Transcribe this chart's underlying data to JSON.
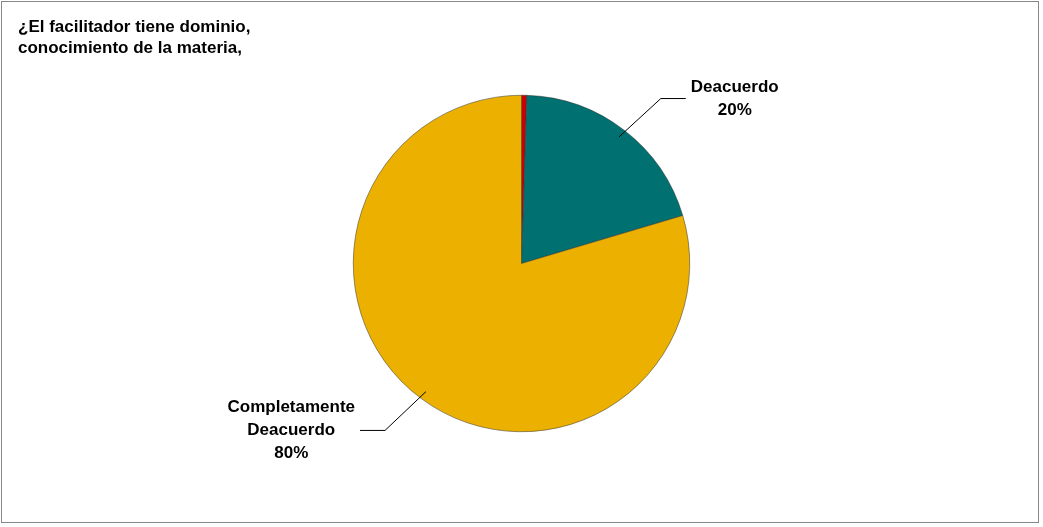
{
  "chart_data": {
    "type": "pie",
    "title": "¿El facilitador tiene dominio, conocimiento de la materia,",
    "categories": [
      null,
      "Deacuerdo",
      "Completamente Deacuerdo"
    ],
    "values": [
      0.5,
      20,
      80
    ],
    "colors": [
      "#cc0000",
      "#007070",
      "#ebb000"
    ],
    "value_labels": [
      null,
      "20%",
      "80%"
    ],
    "legend": false
  }
}
